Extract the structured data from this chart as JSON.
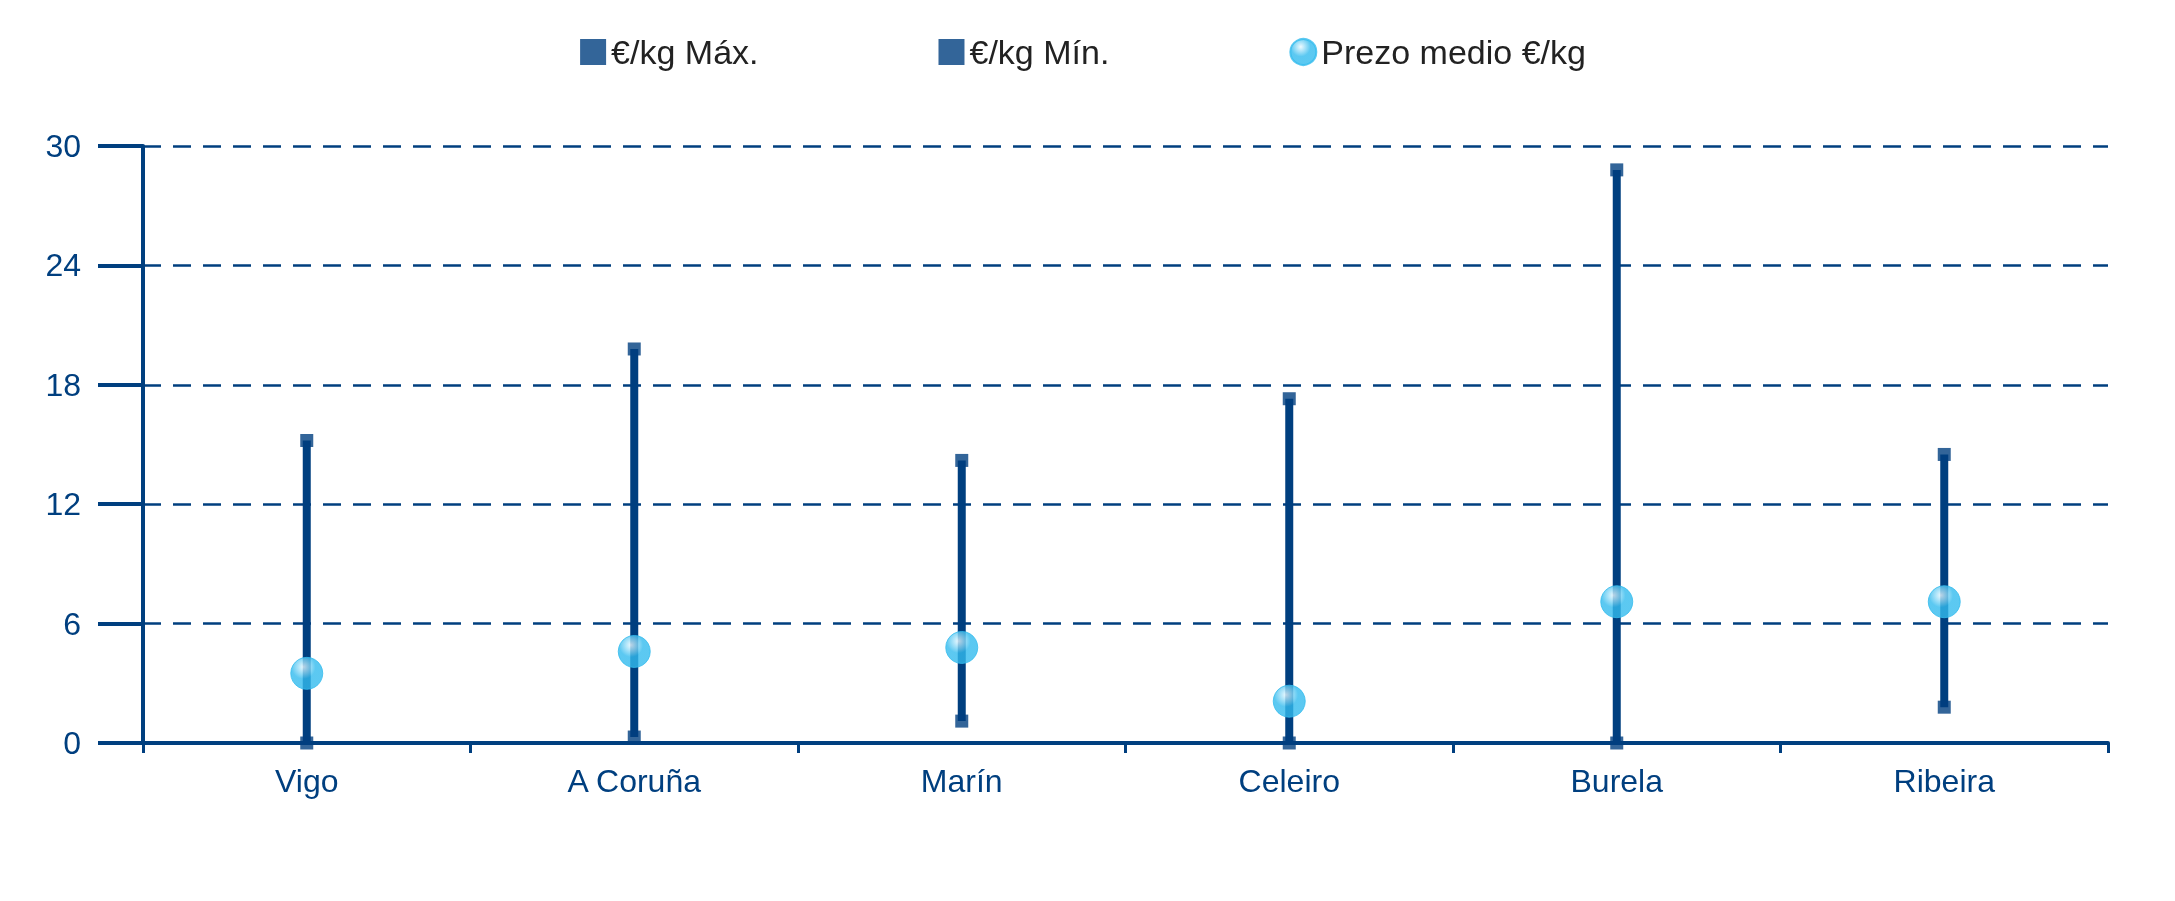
{
  "chart_data": {
    "type": "scatter",
    "categories": [
      "Vigo",
      "A Coruña",
      "Marín",
      "Celeiro",
      "Burela",
      "Ribeira"
    ],
    "series": [
      {
        "type": "bar",
        "color": "#003f7f",
        "base": [
          0,
          0.3,
          1.1,
          0,
          0,
          1.8
        ],
        "values": [
          15.2,
          19.5,
          13.1,
          17.3,
          28.8,
          12.7
        ]
      },
      {
        "name": "€/kg Máx.",
        "marker": "square",
        "color": "#003f7f",
        "values": [
          15.2,
          19.8,
          14.2,
          17.3,
          28.8,
          14.5
        ]
      },
      {
        "name": "€/kg Mín.",
        "marker": "square",
        "color": "#003f7f",
        "values": [
          0,
          0.3,
          1.1,
          0,
          0,
          1.8
        ]
      },
      {
        "name": "Prezo medio €/kg",
        "marker": "circle",
        "color": "#33bbee",
        "values": [
          3.5,
          4.6,
          4.8,
          2.1,
          7.1,
          7.1
        ]
      }
    ],
    "ylim": [
      0,
      30
    ],
    "yticks": [
      0,
      6,
      12,
      18,
      24,
      30
    ],
    "grid": "y",
    "legend": "top"
  }
}
